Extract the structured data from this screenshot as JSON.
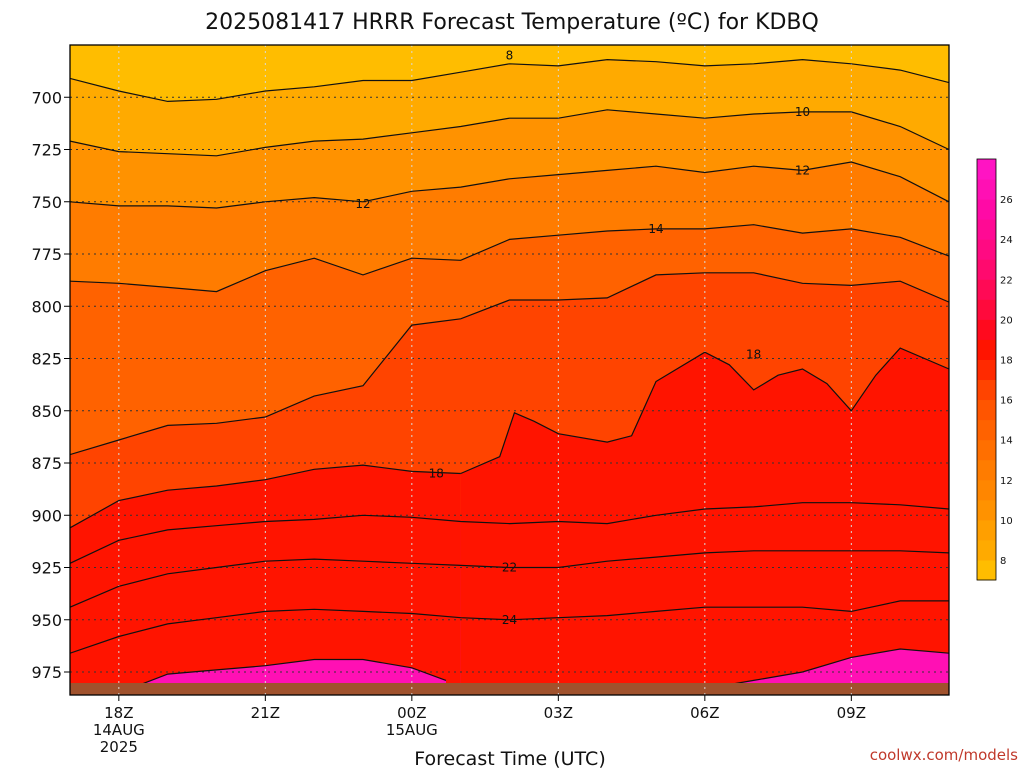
{
  "chart_data": {
    "type": "contour",
    "title": "2025081417 HRRR Forecast Temperature (ºC) for KDBQ",
    "xlabel": "Forecast Time (UTC)",
    "ylabel": "",
    "credit": "coolwx.com/models",
    "y_axis": {
      "unit": "hPa",
      "inverted": true,
      "range": [
        675,
        986
      ],
      "ticks": [
        700,
        725,
        750,
        775,
        800,
        825,
        850,
        875,
        900,
        925,
        950,
        975
      ]
    },
    "x_axis": {
      "range_hours": [
        -1,
        17
      ],
      "ticks": [
        {
          "hour": 0,
          "lines": [
            "18Z",
            "14AUG",
            "2025"
          ]
        },
        {
          "hour": 3,
          "lines": [
            "21Z"
          ]
        },
        {
          "hour": 6,
          "lines": [
            "00Z",
            "15AUG"
          ]
        },
        {
          "hour": 9,
          "lines": [
            "03Z"
          ]
        },
        {
          "hour": 12,
          "lines": [
            "06Z"
          ]
        },
        {
          "hour": 15,
          "lines": [
            "09Z"
          ]
        }
      ]
    },
    "colorbar": {
      "levels": [
        7,
        8,
        9,
        10,
        11,
        12,
        13,
        14,
        15,
        16,
        17,
        18,
        19,
        20,
        21,
        22,
        23,
        24,
        25,
        26,
        27,
        28
      ],
      "colors": [
        "#ffbd00",
        "#ffaa00",
        "#ff9f00",
        "#ff9200",
        "#ff8600",
        "#ff7c00",
        "#ff6f00",
        "#ff6200",
        "#ff5500",
        "#ff4400",
        "#ff2a00",
        "#ff1400",
        "#ff0a1e",
        "#ff0a3c",
        "#ff0a55",
        "#ff0a6e",
        "#ff0a82",
        "#ff0a94",
        "#ff0aa6",
        "#ff10b4",
        "#ff14c3"
      ],
      "labels": [
        8,
        10,
        12,
        14,
        16,
        18,
        20,
        22,
        24,
        26
      ]
    },
    "contours": [
      {
        "level": 8,
        "label": "8",
        "label_at": [
          8,
          680
        ],
        "points": [
          [
            -1,
            691
          ],
          [
            0,
            697
          ],
          [
            1,
            702
          ],
          [
            2,
            701
          ],
          [
            3,
            697
          ],
          [
            4,
            695
          ],
          [
            5,
            692
          ],
          [
            6,
            692
          ],
          [
            7,
            688
          ],
          [
            8,
            684
          ],
          [
            9,
            685
          ],
          [
            10,
            682
          ],
          [
            11,
            683
          ],
          [
            12,
            685
          ],
          [
            13,
            684
          ],
          [
            14,
            682
          ],
          [
            15,
            684
          ],
          [
            16,
            687
          ],
          [
            17,
            693
          ]
        ]
      },
      {
        "level": 10,
        "label": "10",
        "label_at": [
          14,
          707
        ],
        "points": [
          [
            -1,
            721
          ],
          [
            0,
            726
          ],
          [
            1,
            727
          ],
          [
            2,
            728
          ],
          [
            3,
            724
          ],
          [
            4,
            721
          ],
          [
            5,
            720
          ],
          [
            6,
            717
          ],
          [
            7,
            714
          ],
          [
            8,
            710
          ],
          [
            9,
            710
          ],
          [
            10,
            706
          ],
          [
            11,
            708
          ],
          [
            12,
            710
          ],
          [
            13,
            708
          ],
          [
            14,
            707
          ],
          [
            15,
            707
          ],
          [
            16,
            714
          ],
          [
            17,
            725
          ]
        ]
      },
      {
        "level": 12,
        "label": "12",
        "label_at": [
          14,
          735
        ],
        "points": [
          [
            -1,
            750
          ],
          [
            0,
            752
          ],
          [
            1,
            752
          ],
          [
            2,
            753
          ],
          [
            3,
            750
          ],
          [
            4,
            748
          ],
          [
            5,
            750
          ],
          [
            6,
            745
          ],
          [
            7,
            743
          ],
          [
            8,
            739
          ],
          [
            9,
            737
          ],
          [
            10,
            735
          ],
          [
            11,
            733
          ],
          [
            12,
            736
          ],
          [
            13,
            733
          ],
          [
            14,
            735
          ],
          [
            15,
            731
          ],
          [
            16,
            738
          ],
          [
            17,
            750
          ]
        ]
      },
      {
        "level": 12,
        "label": "12",
        "label_at": [
          5,
          751
        ],
        "points": []
      },
      {
        "level": 14,
        "label": "14",
        "label_at": [
          11,
          763
        ],
        "points": [
          [
            -1,
            788
          ],
          [
            0,
            789
          ],
          [
            1,
            791
          ],
          [
            2,
            793
          ],
          [
            3,
            783
          ],
          [
            4,
            777
          ],
          [
            5,
            785
          ],
          [
            6,
            777
          ],
          [
            7,
            778
          ],
          [
            8,
            768
          ],
          [
            9,
            766
          ],
          [
            10,
            764
          ],
          [
            11,
            763
          ],
          [
            12,
            763
          ],
          [
            13,
            761
          ],
          [
            14,
            765
          ],
          [
            15,
            763
          ],
          [
            16,
            767
          ],
          [
            17,
            776
          ]
        ]
      },
      {
        "level": 16,
        "label": "",
        "label_at": null,
        "points": [
          [
            -1,
            871
          ],
          [
            0,
            864
          ],
          [
            1,
            857
          ],
          [
            2,
            856
          ],
          [
            3,
            853
          ],
          [
            4,
            843
          ],
          [
            5,
            838
          ],
          [
            6,
            809
          ],
          [
            7,
            806
          ],
          [
            8,
            797
          ],
          [
            9,
            797
          ],
          [
            10,
            796
          ],
          [
            11,
            785
          ],
          [
            12,
            784
          ],
          [
            13,
            784
          ],
          [
            14,
            789
          ],
          [
            15,
            790
          ],
          [
            16,
            788
          ],
          [
            17,
            798
          ]
        ]
      },
      {
        "level": 18,
        "label": "18",
        "label_at": [
          13,
          823
        ],
        "points": [
          [
            7,
            880
          ],
          [
            7.8,
            872
          ],
          [
            8.1,
            851
          ],
          [
            8.5,
            855
          ],
          [
            9,
            861
          ],
          [
            10,
            865
          ],
          [
            10.5,
            862
          ],
          [
            11,
            836
          ],
          [
            12,
            822
          ],
          [
            12.5,
            828
          ],
          [
            13,
            840
          ],
          [
            13.5,
            833
          ],
          [
            14,
            830
          ],
          [
            14.5,
            837
          ],
          [
            15,
            850
          ],
          [
            15.5,
            833
          ],
          [
            16,
            820
          ],
          [
            17,
            830
          ]
        ]
      },
      {
        "level": 18,
        "label": "18",
        "label_at": [
          6.5,
          880
        ],
        "points": [
          [
            -1,
            906
          ],
          [
            0,
            893
          ],
          [
            1,
            888
          ],
          [
            2,
            886
          ],
          [
            3,
            883
          ],
          [
            4,
            878
          ],
          [
            5,
            876
          ],
          [
            6,
            879
          ],
          [
            7,
            880
          ]
        ]
      },
      {
        "level": 20,
        "label": "",
        "label_at": null,
        "points": [
          [
            -1,
            923
          ],
          [
            0,
            912
          ],
          [
            1,
            907
          ],
          [
            2,
            905
          ],
          [
            3,
            903
          ],
          [
            4,
            902
          ],
          [
            5,
            900
          ],
          [
            6,
            901
          ],
          [
            7,
            903
          ],
          [
            8,
            904
          ],
          [
            9,
            903
          ],
          [
            10,
            904
          ],
          [
            11,
            900
          ],
          [
            12,
            897
          ],
          [
            13,
            896
          ],
          [
            14,
            894
          ],
          [
            15,
            894
          ],
          [
            16,
            895
          ],
          [
            17,
            897
          ]
        ]
      },
      {
        "level": 22,
        "label": "22",
        "label_at": [
          8,
          925
        ],
        "points": [
          [
            -1,
            944
          ],
          [
            0,
            934
          ],
          [
            1,
            928
          ],
          [
            2,
            925
          ],
          [
            3,
            922
          ],
          [
            4,
            921
          ],
          [
            5,
            922
          ],
          [
            6,
            923
          ],
          [
            7,
            924
          ],
          [
            8,
            925
          ],
          [
            9,
            925
          ],
          [
            10,
            922
          ],
          [
            11,
            920
          ],
          [
            12,
            918
          ],
          [
            13,
            917
          ],
          [
            14,
            917
          ],
          [
            15,
            917
          ],
          [
            16,
            917
          ],
          [
            17,
            918
          ]
        ]
      },
      {
        "level": 24,
        "label": "24",
        "label_at": [
          8,
          950
        ],
        "points": [
          [
            -1,
            966
          ],
          [
            0,
            958
          ],
          [
            1,
            952
          ],
          [
            2,
            949
          ],
          [
            3,
            946
          ],
          [
            4,
            945
          ],
          [
            5,
            946
          ],
          [
            6,
            947
          ],
          [
            7,
            949
          ],
          [
            8,
            950
          ],
          [
            9,
            949
          ],
          [
            10,
            948
          ],
          [
            11,
            946
          ],
          [
            12,
            944
          ],
          [
            13,
            944
          ],
          [
            14,
            944
          ],
          [
            15,
            946
          ],
          [
            16,
            941
          ],
          [
            17,
            941
          ]
        ]
      },
      {
        "level": 26,
        "label": "",
        "label_at": null,
        "points": [
          [
            0,
            985
          ],
          [
            1,
            976
          ],
          [
            2,
            974
          ],
          [
            3,
            972
          ],
          [
            4,
            969
          ],
          [
            5,
            969
          ],
          [
            6,
            973
          ],
          [
            6.7,
            979
          ]
        ]
      },
      {
        "level": 26,
        "label": "",
        "label_at": null,
        "points": [
          [
            12,
            983
          ],
          [
            13,
            979
          ],
          [
            14,
            975
          ],
          [
            15,
            968
          ],
          [
            16,
            964
          ],
          [
            17,
            966
          ]
        ]
      }
    ]
  }
}
